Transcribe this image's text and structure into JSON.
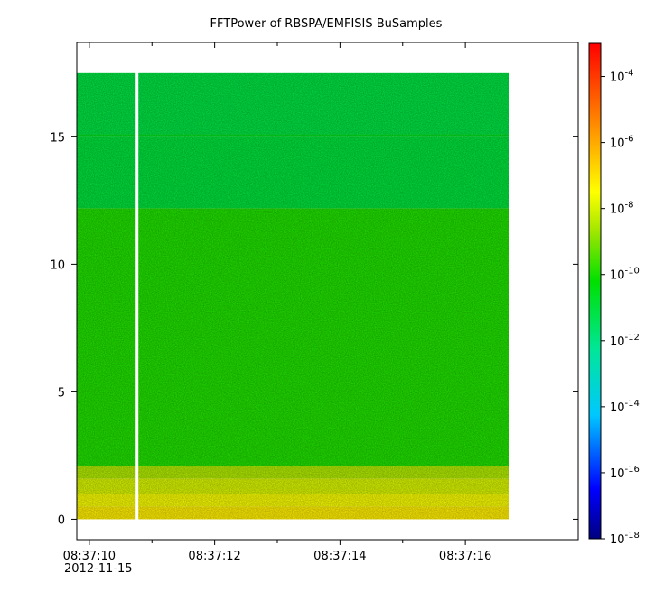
{
  "chart_data": {
    "type": "heatmap",
    "title": "FFTPower of RBSPA/EMFISIS  BuSamples",
    "xlabel": "",
    "ylabel": "",
    "x_ticks": [
      {
        "value": 10,
        "label": "08:37:10"
      },
      {
        "value": 12,
        "label": "08:37:12"
      },
      {
        "value": 14,
        "label": "08:37:14"
      },
      {
        "value": 16,
        "label": "08:37:16"
      }
    ],
    "x_minor_ticks": [
      11,
      13,
      15,
      17
    ],
    "x_date_label": "2012-11-15",
    "xlim": [
      9.8,
      17.8
    ],
    "y_ticks": [
      {
        "value": 0,
        "label": "0"
      },
      {
        "value": 5,
        "label": "5"
      },
      {
        "value": 10,
        "label": "10"
      },
      {
        "value": 15,
        "label": "15"
      }
    ],
    "ylim": [
      -0.8,
      18.7
    ],
    "colorbar": {
      "scale": "log",
      "range": [
        1e-18,
        0.001
      ],
      "tick_labels": [
        {
          "exp": -4,
          "base": "10",
          "sup": "-4"
        },
        {
          "exp": -6,
          "base": "10",
          "sup": "-6"
        },
        {
          "exp": -8,
          "base": "10",
          "sup": "-8"
        },
        {
          "exp": -10,
          "base": "10",
          "sup": "-10"
        },
        {
          "exp": -12,
          "base": "10",
          "sup": "-12"
        },
        {
          "exp": -14,
          "base": "10",
          "sup": "-14"
        },
        {
          "exp": -16,
          "base": "10",
          "sup": "-16"
        },
        {
          "exp": -18,
          "base": "10",
          "sup": "-18"
        }
      ]
    },
    "data_extent": {
      "x": [
        9.8,
        16.7
      ],
      "y": [
        0.0,
        17.5
      ]
    },
    "gap_x": [
      10.74,
      10.78
    ],
    "bands": [
      {
        "y0": 0.0,
        "y1": 0.5,
        "log_power": -7.2
      },
      {
        "y0": 0.5,
        "y1": 1.0,
        "log_power": -7.6
      },
      {
        "y0": 1.0,
        "y1": 1.6,
        "log_power": -8.0
      },
      {
        "y0": 1.6,
        "y1": 2.1,
        "log_power": -8.5
      },
      {
        "y0": 2.1,
        "y1": 12.2,
        "log_power": -9.9
      },
      {
        "y0": 12.2,
        "y1": 15.0,
        "log_power": -11.0
      },
      {
        "y0": 15.0,
        "y1": 15.1,
        "log_power": -10.6
      },
      {
        "y0": 15.1,
        "y1": 17.5,
        "log_power": -11.1
      }
    ],
    "grid": false
  }
}
